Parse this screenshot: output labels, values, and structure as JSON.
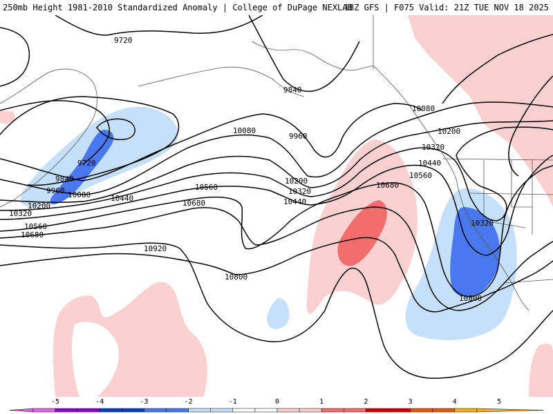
{
  "header": {
    "title": "250mb Height 1981-2010 Standardized Anomaly | College of DuPage NEXLAB",
    "run": "18Z GFS | F075 Valid: 21Z TUE NOV 18 2025"
  },
  "colors": {
    "neg5": "#e066e6",
    "neg4": "#8a00c8",
    "neg3": "#0a3cc8",
    "neg2": "#4a78f0",
    "neg1": "#c6e0fb",
    "zero": "#ffffff",
    "pos1": "#fbd0d0",
    "pos2": "#f26e6e",
    "pos3": "#c80000",
    "pos4": "#e05a00",
    "pos5": "#f2b21e",
    "contour": "#000000",
    "border": "#555555"
  },
  "colorbar": {
    "ticks": [
      "-5",
      "-4",
      "-3",
      "-2",
      "-1",
      "0",
      "1",
      "2",
      "3",
      "4",
      "5"
    ]
  },
  "contour_labels": {
    "l9720_a": "9720",
    "l9720_b": "9720",
    "l9840_a": "9840",
    "l9840_b": "9840",
    "l9960_a": "9960",
    "l9960_b": "9960",
    "l10080_a": "10080",
    "l10080_b": "10080",
    "l10080_c": "10080",
    "l10200_a": "10200",
    "l10200_b": "10200",
    "l10200_c": "10200",
    "l10320_a": "10320",
    "l10320_b": "10320",
    "l10320_c": "10320",
    "l10320_d": "10320",
    "l10440_a": "10440",
    "l10440_b": "10440",
    "l10440_c": "10440",
    "l10560_a": "10560",
    "l10560_b": "10560",
    "l10560_c": "10560",
    "l10680_a": "10680",
    "l10680_b": "10680",
    "l10680_c": "10680",
    "l10800_a": "10800",
    "l10800_b": "10800",
    "l10920_a": "10920"
  }
}
